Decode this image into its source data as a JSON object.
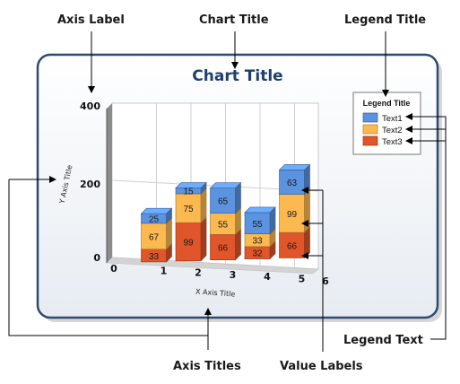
{
  "callouts": {
    "axis_label": "Axis Label",
    "chart_title": "Chart Title",
    "legend_title": "Legend Title",
    "axis_titles": "Axis Titles",
    "value_labels": "Value Labels",
    "legend_text": "Legend Text"
  },
  "chart_data": {
    "type": "bar",
    "stacked": true,
    "three_d": true,
    "title": "Chart Title",
    "xlabel": "X Axis Title",
    "ylabel": "Y Axis Title",
    "categories": [
      "1",
      "2",
      "3",
      "4",
      "5"
    ],
    "x_ticks": [
      "0",
      "1",
      "2",
      "3",
      "4",
      "5",
      "6"
    ],
    "y_ticks": [
      "0",
      "200",
      "400"
    ],
    "ylim": [
      0,
      400
    ],
    "grid": true,
    "legend_title": "Legend Title",
    "legend_position": "right",
    "series": [
      {
        "name": "Text3",
        "color": "#e0552a",
        "values": [
          33,
          99,
          66,
          32,
          66
        ]
      },
      {
        "name": "Text2",
        "color": "#fbb94f",
        "values": [
          67,
          75,
          55,
          33,
          99
        ]
      },
      {
        "name": "Text1",
        "color": "#5b93e0",
        "values": [
          25,
          15,
          65,
          55,
          63
        ]
      }
    ],
    "legend_order": [
      "Text1",
      "Text2",
      "Text3"
    ]
  }
}
